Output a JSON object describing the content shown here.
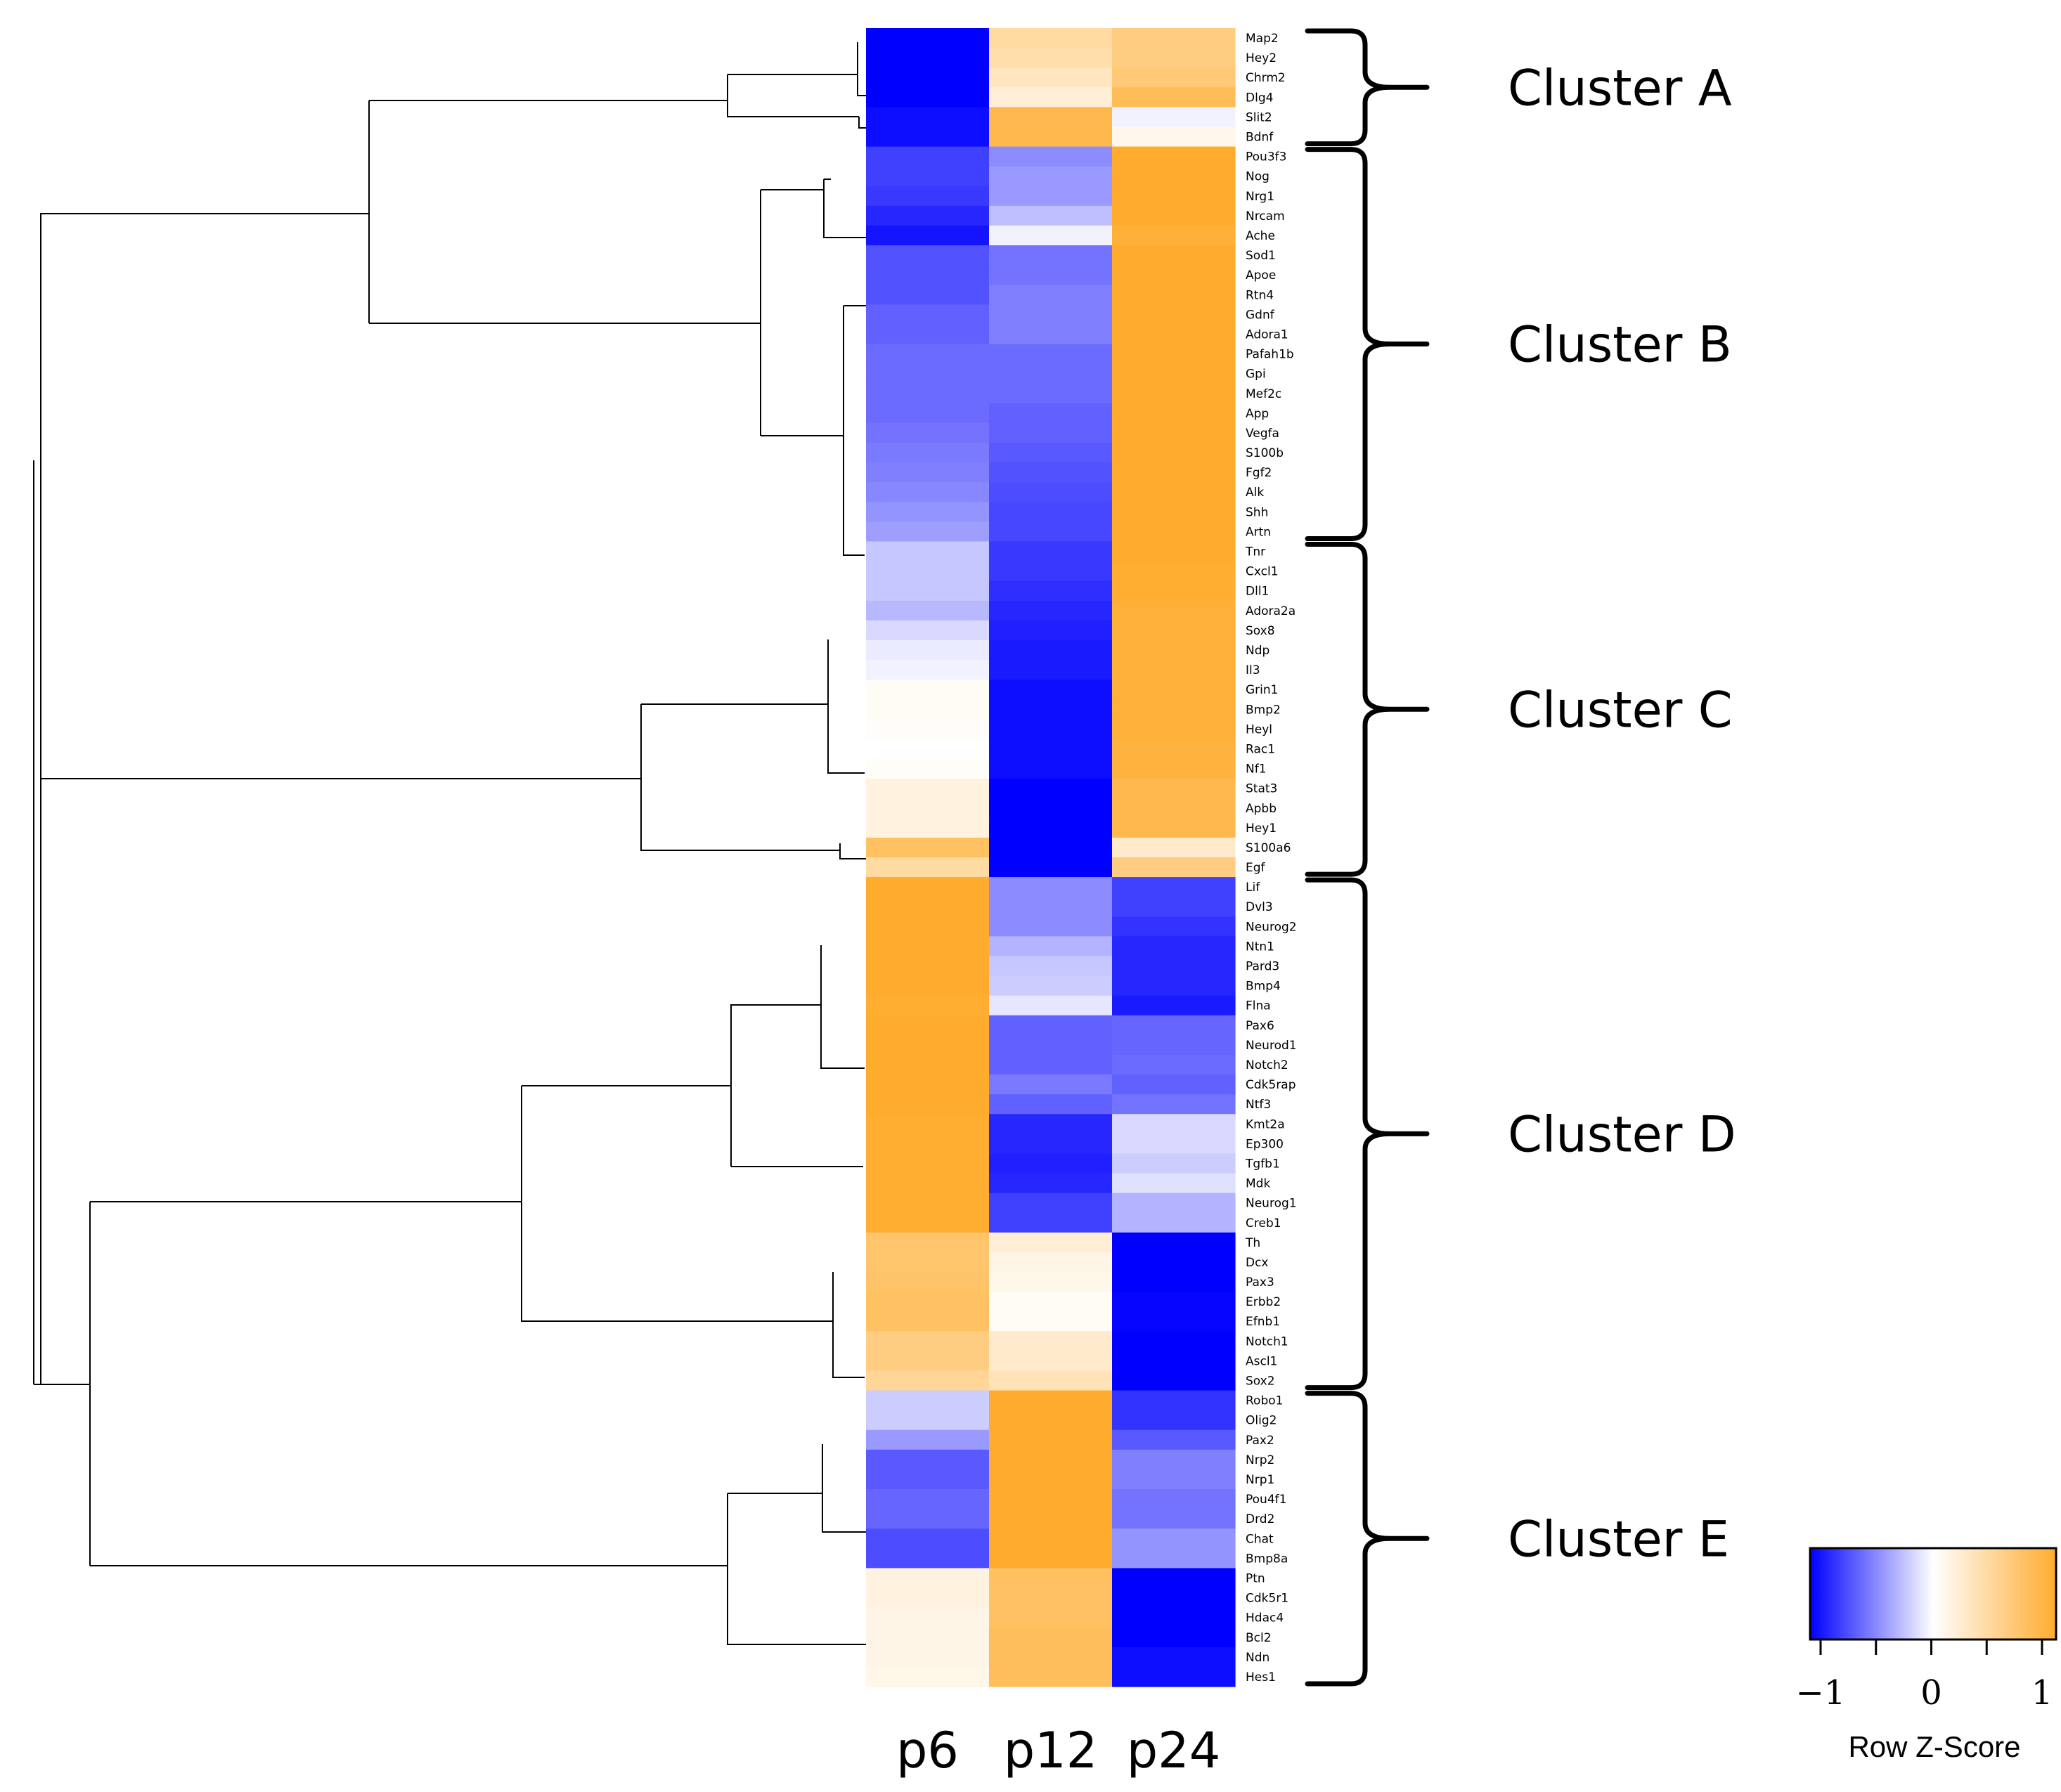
{
  "chart_data": {
    "type": "heatmap",
    "columns": [
      "p6",
      "p12",
      "p24"
    ],
    "rows": [
      {
        "gene": "Map2",
        "values": [
          -1.0,
          0.45,
          0.6
        ]
      },
      {
        "gene": "Hey2",
        "values": [
          -1.0,
          0.4,
          0.6
        ]
      },
      {
        "gene": "Chrm2",
        "values": [
          -1.0,
          0.3,
          0.65
        ]
      },
      {
        "gene": "Dlg4",
        "values": [
          -1.0,
          0.2,
          0.8
        ]
      },
      {
        "gene": "Slit2",
        "values": [
          -0.95,
          0.85,
          -0.05
        ]
      },
      {
        "gene": "Bdnf",
        "values": [
          -0.95,
          0.85,
          0.1
        ]
      },
      {
        "gene": "Pou3f3",
        "values": [
          -0.75,
          -0.45,
          1.0
        ]
      },
      {
        "gene": "Nog",
        "values": [
          -0.75,
          -0.4,
          1.0
        ]
      },
      {
        "gene": "Nrg1",
        "values": [
          -0.78,
          -0.4,
          1.0
        ]
      },
      {
        "gene": "Nrcam",
        "values": [
          -0.85,
          -0.25,
          1.0
        ]
      },
      {
        "gene": "Ache",
        "values": [
          -0.92,
          -0.05,
          0.95
        ]
      },
      {
        "gene": "Sod1",
        "values": [
          -0.68,
          -0.55,
          1.0
        ]
      },
      {
        "gene": "Apoe",
        "values": [
          -0.68,
          -0.55,
          1.0
        ]
      },
      {
        "gene": "Rtn4",
        "values": [
          -0.68,
          -0.5,
          1.0
        ]
      },
      {
        "gene": "Gdnf",
        "values": [
          -0.62,
          -0.5,
          1.0
        ]
      },
      {
        "gene": "Adora1",
        "values": [
          -0.62,
          -0.5,
          1.0
        ]
      },
      {
        "gene": "Pafah1b",
        "values": [
          -0.58,
          -0.58,
          1.0
        ]
      },
      {
        "gene": "Gpi",
        "values": [
          -0.58,
          -0.58,
          1.0
        ]
      },
      {
        "gene": "Mef2c",
        "values": [
          -0.58,
          -0.58,
          1.0
        ]
      },
      {
        "gene": "App",
        "values": [
          -0.58,
          -0.62,
          1.0
        ]
      },
      {
        "gene": "Vegfa",
        "values": [
          -0.55,
          -0.62,
          1.0
        ]
      },
      {
        "gene": "S100b",
        "values": [
          -0.52,
          -0.65,
          1.0
        ]
      },
      {
        "gene": "Fgf2",
        "values": [
          -0.5,
          -0.68,
          1.0
        ]
      },
      {
        "gene": "Alk",
        "values": [
          -0.47,
          -0.7,
          1.0
        ]
      },
      {
        "gene": "Shh",
        "values": [
          -0.42,
          -0.72,
          1.0
        ]
      },
      {
        "gene": "Artn",
        "values": [
          -0.38,
          -0.72,
          1.0
        ]
      },
      {
        "gene": "Tnr",
        "values": [
          -0.22,
          -0.78,
          1.0
        ]
      },
      {
        "gene": "Cxcl1",
        "values": [
          -0.22,
          -0.78,
          0.98
        ]
      },
      {
        "gene": "Dll1",
        "values": [
          -0.22,
          -0.82,
          0.98
        ]
      },
      {
        "gene": "Adora2a",
        "values": [
          -0.28,
          -0.85,
          0.95
        ]
      },
      {
        "gene": "Sox8",
        "values": [
          -0.15,
          -0.88,
          0.95
        ]
      },
      {
        "gene": "Ndp",
        "values": [
          -0.08,
          -0.9,
          0.95
        ]
      },
      {
        "gene": "Il3",
        "values": [
          -0.05,
          -0.9,
          0.95
        ]
      },
      {
        "gene": "Grin1",
        "values": [
          0.05,
          -0.95,
          0.95
        ]
      },
      {
        "gene": "Bmp2",
        "values": [
          0.05,
          -0.95,
          0.95
        ]
      },
      {
        "gene": "Heyl",
        "values": [
          0.03,
          -0.95,
          0.95
        ]
      },
      {
        "gene": "Rac1",
        "values": [
          0.0,
          -0.95,
          0.92
        ]
      },
      {
        "gene": "Nf1",
        "values": [
          0.03,
          -0.95,
          0.92
        ]
      },
      {
        "gene": "Stat3",
        "values": [
          0.15,
          -1.0,
          0.85
        ]
      },
      {
        "gene": "Apbb",
        "values": [
          0.15,
          -1.0,
          0.85
        ]
      },
      {
        "gene": "Hey1",
        "values": [
          0.15,
          -1.0,
          0.85
        ]
      },
      {
        "gene": "S100a6",
        "values": [
          0.75,
          -1.0,
          0.25
        ]
      },
      {
        "gene": "Egf",
        "values": [
          0.45,
          -1.0,
          0.6
        ]
      },
      {
        "gene": "Lif",
        "values": [
          1.0,
          -0.45,
          -0.75
        ]
      },
      {
        "gene": "Dvl3",
        "values": [
          1.0,
          -0.45,
          -0.75
        ]
      },
      {
        "gene": "Neurog2",
        "values": [
          1.0,
          -0.45,
          -0.8
        ]
      },
      {
        "gene": "Ntn1",
        "values": [
          1.0,
          -0.3,
          -0.85
        ]
      },
      {
        "gene": "Pard3",
        "values": [
          1.0,
          -0.22,
          -0.85
        ]
      },
      {
        "gene": "Bmp4",
        "values": [
          1.0,
          -0.2,
          -0.85
        ]
      },
      {
        "gene": "Flna",
        "values": [
          0.98,
          -0.1,
          -0.9
        ]
      },
      {
        "gene": "Pax6",
        "values": [
          1.0,
          -0.62,
          -0.6
        ]
      },
      {
        "gene": "Neurod1",
        "values": [
          1.0,
          -0.62,
          -0.6
        ]
      },
      {
        "gene": "Notch2",
        "values": [
          1.0,
          -0.62,
          -0.58
        ]
      },
      {
        "gene": "Cdk5rap",
        "values": [
          1.0,
          -0.52,
          -0.62
        ]
      },
      {
        "gene": "Ntf3",
        "values": [
          1.0,
          -0.62,
          -0.55
        ]
      },
      {
        "gene": "Kmt2a",
        "values": [
          0.98,
          -0.85,
          -0.15
        ]
      },
      {
        "gene": "Ep300",
        "values": [
          0.98,
          -0.85,
          -0.15
        ]
      },
      {
        "gene": "Tgfb1",
        "values": [
          0.98,
          -0.88,
          -0.2
        ]
      },
      {
        "gene": "Mdk",
        "values": [
          0.98,
          -0.85,
          -0.12
        ]
      },
      {
        "gene": "Neurog1",
        "values": [
          0.98,
          -0.75,
          -0.3
        ]
      },
      {
        "gene": "Creb1",
        "values": [
          0.98,
          -0.75,
          -0.3
        ]
      },
      {
        "gene": "Th",
        "values": [
          0.7,
          0.2,
          -1.0
        ]
      },
      {
        "gene": "Dcx",
        "values": [
          0.7,
          0.12,
          -1.0
        ]
      },
      {
        "gene": "Pax3",
        "values": [
          0.72,
          0.1,
          -1.0
        ]
      },
      {
        "gene": "Erbb2",
        "values": [
          0.75,
          0.05,
          -0.98
        ]
      },
      {
        "gene": "Efnb1",
        "values": [
          0.75,
          0.05,
          -0.98
        ]
      },
      {
        "gene": "Notch1",
        "values": [
          0.6,
          0.25,
          -1.0
        ]
      },
      {
        "gene": "Ascl1",
        "values": [
          0.6,
          0.25,
          -1.0
        ]
      },
      {
        "gene": "Sox2",
        "values": [
          0.5,
          0.35,
          -1.0
        ]
      },
      {
        "gene": "Robo1",
        "values": [
          -0.2,
          1.0,
          -0.8
        ]
      },
      {
        "gene": "Olig2",
        "values": [
          -0.2,
          1.0,
          -0.8
        ]
      },
      {
        "gene": "Pax2",
        "values": [
          -0.4,
          1.0,
          -0.65
        ]
      },
      {
        "gene": "Nrp2",
        "values": [
          -0.65,
          1.0,
          -0.5
        ]
      },
      {
        "gene": "Nrp1",
        "values": [
          -0.65,
          1.0,
          -0.5
        ]
      },
      {
        "gene": "Pou4f1",
        "values": [
          -0.6,
          1.0,
          -0.55
        ]
      },
      {
        "gene": "Drd2",
        "values": [
          -0.6,
          1.0,
          -0.55
        ]
      },
      {
        "gene": "Chat",
        "values": [
          -0.7,
          1.0,
          -0.42
        ]
      },
      {
        "gene": "Bmp8a",
        "values": [
          -0.7,
          1.0,
          -0.42
        ]
      },
      {
        "gene": "Ptn",
        "values": [
          0.15,
          0.75,
          -1.0
        ]
      },
      {
        "gene": "Cdk5r1",
        "values": [
          0.15,
          0.75,
          -1.0
        ]
      },
      {
        "gene": "Hdac4",
        "values": [
          0.12,
          0.75,
          -1.0
        ]
      },
      {
        "gene": "Bcl2",
        "values": [
          0.12,
          0.78,
          -1.0
        ]
      },
      {
        "gene": "Ndn",
        "values": [
          0.12,
          0.78,
          -0.95
        ]
      },
      {
        "gene": "Hes1",
        "values": [
          0.1,
          0.78,
          -0.95
        ]
      }
    ],
    "clusters": [
      {
        "label": "Cluster A",
        "first": "Map2",
        "last": "Bdnf"
      },
      {
        "label": "Cluster B",
        "first": "Pou3f3",
        "last": "Artn"
      },
      {
        "label": "Cluster C",
        "first": "Tnr",
        "last": "Egf"
      },
      {
        "label": "Cluster D",
        "first": "Lif",
        "last": "Sox2"
      },
      {
        "label": "Cluster E",
        "first": "Robo1",
        "last": "Hes1"
      }
    ],
    "legend": {
      "title": "Row Z-Score",
      "ticks": [
        "−1",
        "0",
        "1"
      ],
      "tick_values": [
        -1,
        0,
        1
      ],
      "colors": [
        "#0000ff",
        "#ffffff",
        "#ffac2e"
      ]
    }
  }
}
